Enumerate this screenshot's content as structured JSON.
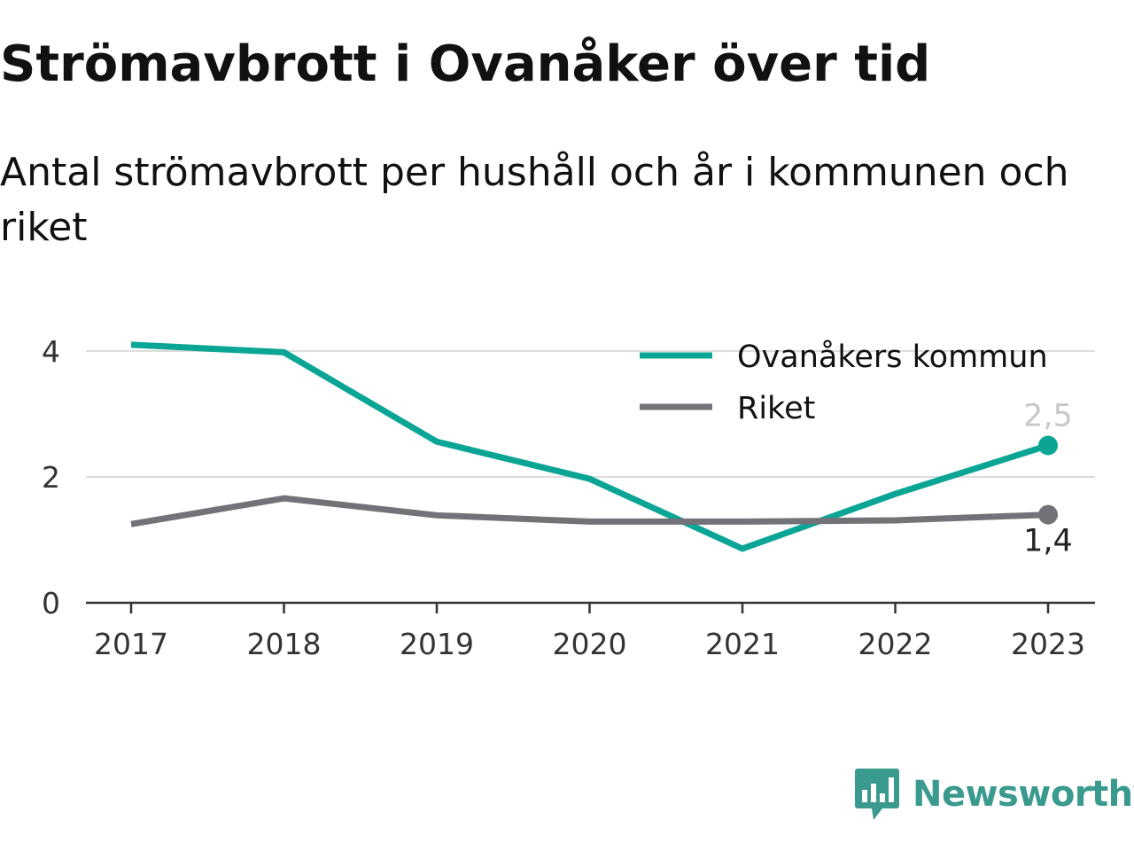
{
  "title": "Strömavbrott i Ovanåker över tid",
  "subtitle": "Antal strömavbrott per hushåll och år i kommunen och riket",
  "brand": {
    "name": "Newsworthy",
    "icon": "newsworthy-logo-icon",
    "color": "#3a9a8e"
  },
  "chart_data": {
    "type": "line",
    "title": "Strömavbrott i Ovanåker över tid",
    "subtitle": "Antal strömavbrott per hushåll och år i kommunen och riket",
    "xlabel": "",
    "ylabel": "",
    "categories": [
      "2017",
      "2018",
      "2019",
      "2020",
      "2021",
      "2022",
      "2023"
    ],
    "ylim": [
      0,
      4.2
    ],
    "yticks": [
      0,
      2,
      4
    ],
    "grid": true,
    "legend_position": "top-right",
    "series": [
      {
        "name": "Ovanåkers kommun",
        "color": "#0ba595",
        "values": [
          4.1,
          3.98,
          2.56,
          1.97,
          0.86,
          1.73,
          2.5
        ],
        "end_label": "2,5",
        "end_label_color": "#c8c8c8"
      },
      {
        "name": "Riket",
        "color": "#737278",
        "values": [
          1.25,
          1.66,
          1.39,
          1.29,
          1.29,
          1.31,
          1.4
        ],
        "end_label": "1,4",
        "end_label_color": "#222222"
      }
    ]
  }
}
